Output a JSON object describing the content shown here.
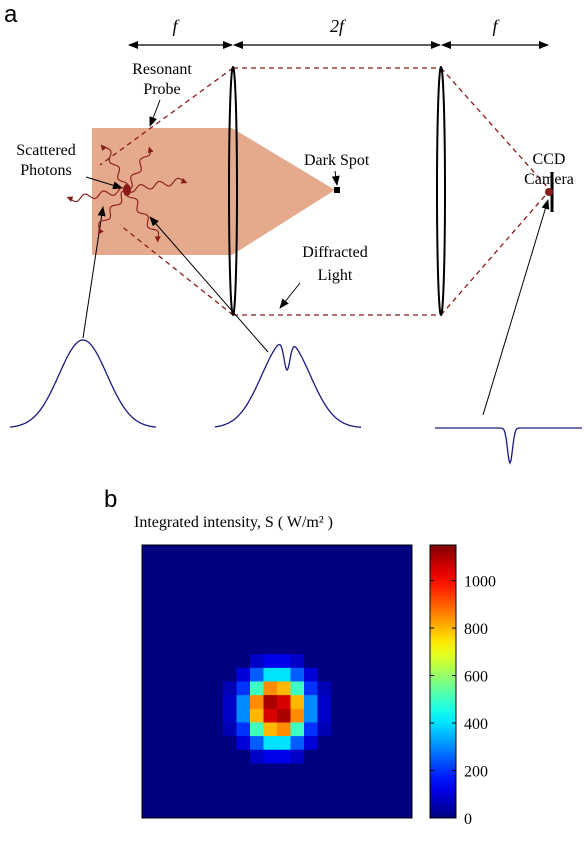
{
  "panel_a": {
    "label": "a",
    "dimensions": [
      "f",
      "2f",
      "f"
    ],
    "resonant_probe": [
      "Resonant",
      "Probe"
    ],
    "scattered_photons": [
      "Scattered",
      "Photons"
    ],
    "dark_spot": "Dark Spot",
    "diffracted_light": [
      "Diffracted",
      "Light"
    ],
    "ccd_camera": [
      "CCD",
      "Camera"
    ]
  },
  "panel_b": {
    "label": "b"
  },
  "chart_data": {
    "type": "heatmap",
    "title": "Integrated intensity, S ( W/m² )",
    "values": [
      [
        0,
        0,
        0,
        0,
        0,
        0,
        0,
        0,
        0,
        0,
        0,
        0,
        0,
        0,
        0,
        0,
        0,
        0,
        0,
        0
      ],
      [
        0,
        0,
        0,
        0,
        0,
        0,
        0,
        0,
        0,
        0,
        0,
        0,
        0,
        0,
        0,
        0,
        0,
        0,
        0,
        0
      ],
      [
        0,
        0,
        0,
        0,
        0,
        0,
        0,
        0,
        0,
        0,
        0,
        0,
        0,
        0,
        0,
        0,
        0,
        0,
        0,
        0
      ],
      [
        0,
        0,
        0,
        0,
        0,
        0,
        0,
        0,
        0,
        0,
        0,
        0,
        0,
        0,
        0,
        0,
        0,
        0,
        0,
        0
      ],
      [
        0,
        0,
        0,
        0,
        0,
        0,
        0,
        0,
        0,
        0,
        0,
        0,
        0,
        0,
        0,
        0,
        0,
        0,
        0,
        0
      ],
      [
        0,
        0,
        0,
        0,
        0,
        0,
        0,
        0,
        0,
        0,
        0,
        0,
        0,
        0,
        0,
        0,
        0,
        0,
        0,
        0
      ],
      [
        0,
        0,
        0,
        0,
        0,
        0,
        0,
        0,
        0,
        0,
        0,
        0,
        0,
        0,
        0,
        0,
        0,
        0,
        0,
        0
      ],
      [
        0,
        0,
        0,
        0,
        0,
        0,
        0,
        0,
        0,
        0,
        0,
        0,
        0,
        0,
        0,
        0,
        0,
        0,
        0,
        0
      ],
      [
        0,
        0,
        0,
        0,
        0,
        0,
        0,
        0,
        80,
        120,
        120,
        80,
        0,
        0,
        0,
        0,
        0,
        0,
        0,
        0
      ],
      [
        0,
        0,
        0,
        0,
        0,
        0,
        0,
        100,
        250,
        400,
        400,
        250,
        100,
        0,
        0,
        0,
        0,
        0,
        0,
        0
      ],
      [
        0,
        0,
        0,
        0,
        0,
        0,
        60,
        200,
        500,
        850,
        800,
        500,
        200,
        60,
        0,
        0,
        0,
        0,
        0,
        0
      ],
      [
        0,
        0,
        0,
        0,
        0,
        0,
        80,
        300,
        850,
        1100,
        1050,
        800,
        300,
        80,
        0,
        0,
        0,
        0,
        0,
        0
      ],
      [
        0,
        0,
        0,
        0,
        0,
        0,
        80,
        300,
        800,
        1050,
        1100,
        850,
        300,
        80,
        0,
        0,
        0,
        0,
        0,
        0
      ],
      [
        0,
        0,
        0,
        0,
        0,
        0,
        60,
        200,
        500,
        800,
        850,
        500,
        200,
        60,
        0,
        0,
        0,
        0,
        0,
        0
      ],
      [
        0,
        0,
        0,
        0,
        0,
        0,
        0,
        100,
        250,
        400,
        400,
        250,
        100,
        0,
        0,
        0,
        0,
        0,
        0,
        0
      ],
      [
        0,
        0,
        0,
        0,
        0,
        0,
        0,
        0,
        80,
        120,
        120,
        80,
        0,
        0,
        0,
        0,
        0,
        0,
        0,
        0
      ],
      [
        0,
        0,
        0,
        0,
        0,
        0,
        0,
        0,
        0,
        0,
        0,
        0,
        0,
        0,
        0,
        0,
        0,
        0,
        0,
        0
      ],
      [
        0,
        0,
        0,
        0,
        0,
        0,
        0,
        0,
        0,
        0,
        0,
        0,
        0,
        0,
        0,
        0,
        0,
        0,
        0,
        0
      ],
      [
        0,
        0,
        0,
        0,
        0,
        0,
        0,
        0,
        0,
        0,
        0,
        0,
        0,
        0,
        0,
        0,
        0,
        0,
        0,
        0
      ],
      [
        0,
        0,
        0,
        0,
        0,
        0,
        0,
        0,
        0,
        0,
        0,
        0,
        0,
        0,
        0,
        0,
        0,
        0,
        0,
        0
      ]
    ],
    "colormap": "jet",
    "zlim": [
      0,
      1150
    ],
    "zticks": [
      0,
      200,
      400,
      600,
      800,
      1000
    ]
  }
}
